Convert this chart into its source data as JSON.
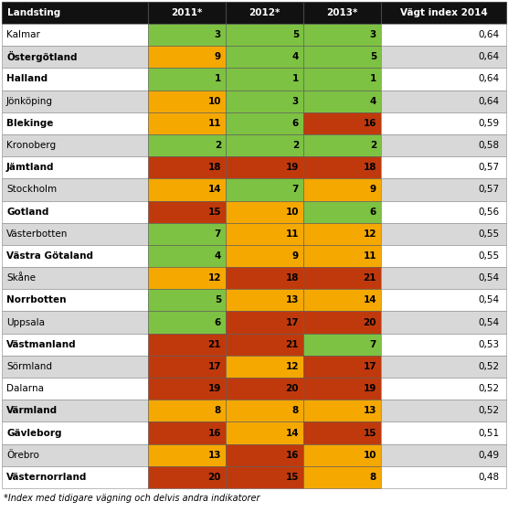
{
  "rows": [
    {
      "name": "Kalmar",
      "v2011": 3,
      "v2012": 5,
      "v2013": 3,
      "index": "0,64",
      "c2011": "green",
      "c2012": "green",
      "c2013": "green",
      "name_bold": false
    },
    {
      "name": "Östergötland",
      "v2011": 9,
      "v2012": 4,
      "v2013": 5,
      "index": "0,64",
      "c2011": "yellow",
      "c2012": "green",
      "c2013": "green",
      "name_bold": true
    },
    {
      "name": "Halland",
      "v2011": 1,
      "v2012": 1,
      "v2013": 1,
      "index": "0,64",
      "c2011": "green",
      "c2012": "green",
      "c2013": "green",
      "name_bold": true
    },
    {
      "name": "Jönköping",
      "v2011": 10,
      "v2012": 3,
      "v2013": 4,
      "index": "0,64",
      "c2011": "yellow",
      "c2012": "green",
      "c2013": "green",
      "name_bold": false
    },
    {
      "name": "Blekinge",
      "v2011": 11,
      "v2012": 6,
      "v2013": 16,
      "index": "0,59",
      "c2011": "yellow",
      "c2012": "green",
      "c2013": "red",
      "name_bold": true
    },
    {
      "name": "Kronoberg",
      "v2011": 2,
      "v2012": 2,
      "v2013": 2,
      "index": "0,58",
      "c2011": "green",
      "c2012": "green",
      "c2013": "green",
      "name_bold": false
    },
    {
      "name": "Jämtland",
      "v2011": 18,
      "v2012": 19,
      "v2013": 18,
      "index": "0,57",
      "c2011": "darkred",
      "c2012": "darkred",
      "c2013": "darkred",
      "name_bold": true
    },
    {
      "name": "Stockholm",
      "v2011": 14,
      "v2012": 7,
      "v2013": 9,
      "index": "0,57",
      "c2011": "yellow",
      "c2012": "green",
      "c2013": "yellow",
      "name_bold": false
    },
    {
      "name": "Gotland",
      "v2011": 15,
      "v2012": 10,
      "v2013": 6,
      "index": "0,56",
      "c2011": "darkred",
      "c2012": "yellow",
      "c2013": "green",
      "name_bold": true
    },
    {
      "name": "Västerbotten",
      "v2011": 7,
      "v2012": 11,
      "v2013": 12,
      "index": "0,55",
      "c2011": "green",
      "c2012": "yellow",
      "c2013": "yellow",
      "name_bold": false
    },
    {
      "name": "Västra Götaland",
      "v2011": 4,
      "v2012": 9,
      "v2013": 11,
      "index": "0,55",
      "c2011": "green",
      "c2012": "yellow",
      "c2013": "yellow",
      "name_bold": true
    },
    {
      "name": "Skåne",
      "v2011": 12,
      "v2012": 18,
      "v2013": 21,
      "index": "0,54",
      "c2011": "yellow",
      "c2012": "darkred",
      "c2013": "darkred",
      "name_bold": false
    },
    {
      "name": "Norrbotten",
      "v2011": 5,
      "v2012": 13,
      "v2013": 14,
      "index": "0,54",
      "c2011": "green",
      "c2012": "yellow",
      "c2013": "yellow",
      "name_bold": true
    },
    {
      "name": "Uppsala",
      "v2011": 6,
      "v2012": 17,
      "v2013": 20,
      "index": "0,54",
      "c2011": "green",
      "c2012": "darkred",
      "c2013": "darkred",
      "name_bold": false
    },
    {
      "name": "Västmanland",
      "v2011": 21,
      "v2012": 21,
      "v2013": 7,
      "index": "0,53",
      "c2011": "darkred",
      "c2012": "darkred",
      "c2013": "green",
      "name_bold": true
    },
    {
      "name": "Sörmland",
      "v2011": 17,
      "v2012": 12,
      "v2013": 17,
      "index": "0,52",
      "c2011": "darkred",
      "c2012": "yellow",
      "c2013": "darkred",
      "name_bold": false
    },
    {
      "name": "Dalarna",
      "v2011": 19,
      "v2012": 20,
      "v2013": 19,
      "index": "0,52",
      "c2011": "darkred",
      "c2012": "darkred",
      "c2013": "darkred",
      "name_bold": false
    },
    {
      "name": "Värmland",
      "v2011": 8,
      "v2012": 8,
      "v2013": 13,
      "index": "0,52",
      "c2011": "yellow",
      "c2012": "yellow",
      "c2013": "yellow",
      "name_bold": true
    },
    {
      "name": "Gävleborg",
      "v2011": 16,
      "v2012": 14,
      "v2013": 15,
      "index": "0,51",
      "c2011": "darkred",
      "c2012": "yellow",
      "c2013": "darkred",
      "name_bold": true
    },
    {
      "name": "Örebro",
      "v2011": 13,
      "v2012": 16,
      "v2013": 10,
      "index": "0,49",
      "c2011": "yellow",
      "c2012": "darkred",
      "c2013": "yellow",
      "name_bold": false
    },
    {
      "name": "Västernorrland",
      "v2011": 20,
      "v2012": 15,
      "v2013": 8,
      "index": "0,48",
      "c2011": "darkred",
      "c2012": "darkred",
      "c2013": "yellow",
      "name_bold": true
    }
  ],
  "color_map": {
    "green": "#7DC242",
    "yellow": "#F5A800",
    "red": "#C0390C",
    "darkred": "#C0390C"
  },
  "header_bg": "#111111",
  "header_fg": "#FFFFFF",
  "row_bg_odd": "#FFFFFF",
  "row_bg_even": "#D8D8D8",
  "footer_text": "*Index med tidigare vägning och delvis andra indikatorer",
  "col_labels": [
    "Landsting",
    "2011*",
    "2012*",
    "2013*",
    "Vägt index 2014"
  ],
  "fig_width": 5.56,
  "fig_height": 5.6,
  "dpi": 100
}
